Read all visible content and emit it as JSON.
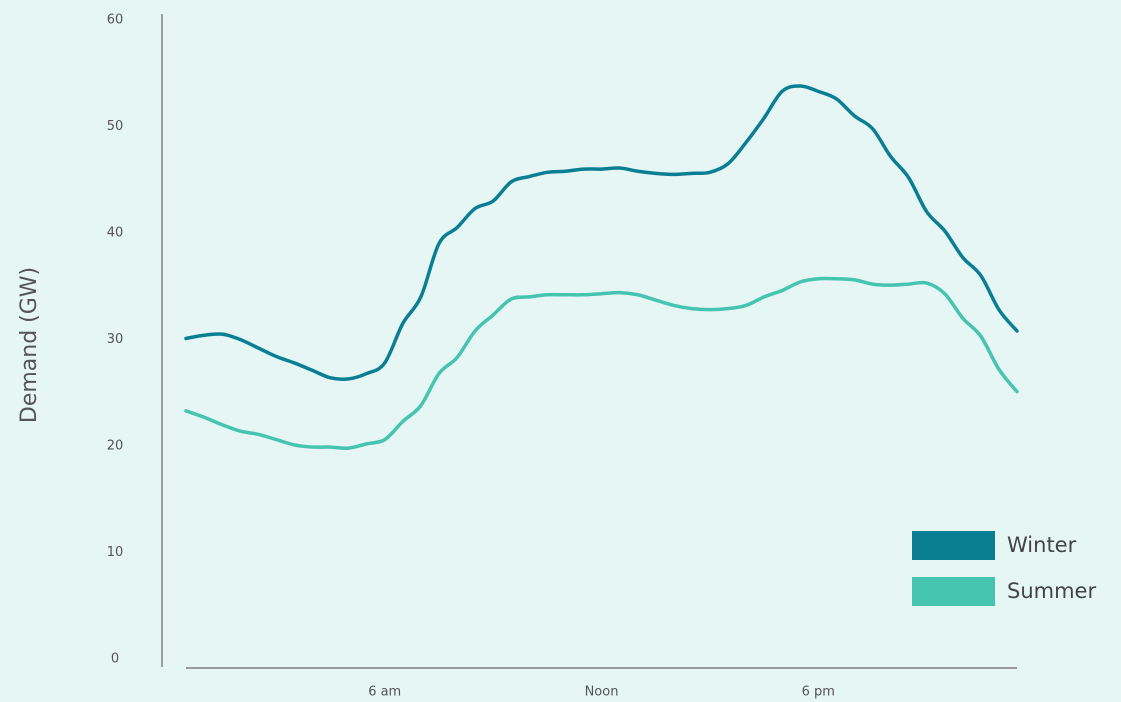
{
  "chart_data": {
    "type": "line",
    "y_label": "Demand (GW)",
    "x": [
      0.5,
      1,
      1.5,
      2,
      2.5,
      3,
      3.5,
      4,
      4.5,
      5,
      5.5,
      6,
      6.5,
      7,
      7.5,
      8,
      8.5,
      9,
      9.5,
      10,
      10.5,
      11,
      11.5,
      12,
      12.5,
      13,
      13.5,
      14,
      14.5,
      15,
      15.5,
      16,
      16.5,
      17,
      17.5,
      18,
      18.5,
      19,
      19.5,
      20,
      20.5,
      21,
      21.5,
      22,
      22.5,
      23,
      23.5
    ],
    "series": [
      {
        "name": "Winter",
        "color": "#0a7f94",
        "values": [
          30.1,
          30.4,
          30.5,
          30.0,
          29.2,
          28.4,
          27.8,
          27.1,
          26.4,
          26.3,
          26.8,
          27.8,
          31.5,
          34.0,
          39.0,
          40.5,
          42.3,
          43.0,
          44.8,
          45.3,
          45.7,
          45.8,
          46.0,
          46.0,
          46.1,
          45.8,
          45.6,
          45.5,
          45.6,
          45.7,
          46.5,
          48.5,
          50.8,
          53.3,
          53.8,
          53.3,
          52.6,
          51.0,
          49.8,
          47.2,
          45.2,
          42.0,
          40.2,
          37.7,
          36.0,
          32.8,
          30.8
        ]
      },
      {
        "name": "Summer",
        "color": "#45c4b0",
        "values": [
          23.3,
          22.7,
          22.0,
          21.4,
          21.1,
          20.6,
          20.1,
          19.9,
          19.9,
          19.8,
          20.2,
          20.6,
          22.3,
          23.8,
          26.8,
          28.3,
          30.8,
          32.3,
          33.8,
          34.0,
          34.2,
          34.2,
          34.2,
          34.3,
          34.4,
          34.2,
          33.7,
          33.2,
          32.9,
          32.8,
          32.9,
          33.2,
          34.0,
          34.6,
          35.4,
          35.7,
          35.7,
          35.6,
          35.2,
          35.1,
          35.2,
          35.3,
          34.3,
          32.0,
          30.3,
          27.2,
          25.1
        ]
      }
    ],
    "xlim": [
      0.5,
      23.5
    ],
    "xticks": [
      {
        "value": 6,
        "label": "6 am"
      },
      {
        "value": 12,
        "label": "Noon"
      },
      {
        "value": 18,
        "label": "6 pm"
      }
    ],
    "ylim": [
      0,
      60
    ],
    "yticks": [
      0,
      10,
      20,
      30,
      40,
      50,
      60
    ],
    "grid": false,
    "legend": "lower right"
  }
}
